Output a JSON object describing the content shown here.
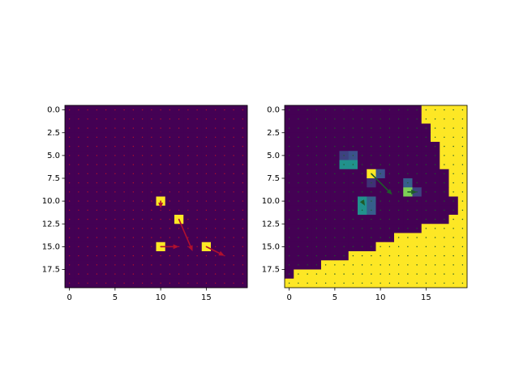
{
  "chart_data": [
    {
      "type": "heatmap",
      "colorscale": [
        "#440154",
        "#3b528b",
        "#21918c",
        "#5ec962",
        "#fde725"
      ],
      "zlim": [
        0,
        1
      ],
      "xlim": [
        -0.5,
        19.5
      ],
      "ylim": [
        19.5,
        -0.5
      ],
      "xticks": [
        0,
        5,
        10,
        15
      ],
      "yticks": [
        {
          "value": 0,
          "label": "0.0"
        },
        {
          "value": 2.5,
          "label": "2.5"
        },
        {
          "value": 5,
          "label": "5.0"
        },
        {
          "value": 7.5,
          "label": "7.5"
        },
        {
          "value": 10,
          "label": "10.0"
        },
        {
          "value": 12.5,
          "label": "12.5"
        },
        {
          "value": 15,
          "label": "15.0"
        },
        {
          "value": 17.5,
          "label": "17.5"
        }
      ],
      "arrow_color": "#b0102e",
      "arrows": [
        {
          "x": 10,
          "y": 10,
          "u": 0,
          "v": 0.8
        },
        {
          "x": 12,
          "y": 12,
          "u": 1.5,
          "v": 3.5
        },
        {
          "x": 10,
          "y": 15,
          "u": 2,
          "v": 0
        },
        {
          "x": 15,
          "y": 15,
          "u": 2,
          "v": 1
        }
      ],
      "z": [
        [
          0,
          0,
          0,
          0,
          0,
          0,
          0,
          0,
          0,
          0,
          0,
          0,
          0,
          0,
          0,
          0,
          0,
          0,
          0,
          0
        ],
        [
          0,
          0,
          0,
          0,
          0,
          0,
          0,
          0,
          0,
          0,
          0,
          0,
          0,
          0,
          0,
          0,
          0,
          0,
          0,
          0
        ],
        [
          0,
          0,
          0,
          0,
          0,
          0,
          0,
          0,
          0,
          0,
          0,
          0,
          0,
          0,
          0,
          0,
          0,
          0,
          0,
          0
        ],
        [
          0,
          0,
          0,
          0,
          0,
          0,
          0,
          0,
          0,
          0,
          0,
          0,
          0,
          0,
          0,
          0,
          0,
          0,
          0,
          0
        ],
        [
          0,
          0,
          0,
          0,
          0,
          0,
          0,
          0,
          0,
          0,
          0,
          0,
          0,
          0,
          0,
          0,
          0,
          0,
          0,
          0
        ],
        [
          0,
          0,
          0,
          0,
          0,
          0,
          0,
          0,
          0,
          0,
          0,
          0,
          0,
          0,
          0,
          0,
          0,
          0,
          0,
          0
        ],
        [
          0,
          0,
          0,
          0,
          0,
          0,
          0,
          0,
          0,
          0,
          0,
          0,
          0,
          0,
          0,
          0,
          0,
          0,
          0,
          0
        ],
        [
          0,
          0,
          0,
          0,
          0,
          0,
          0,
          0,
          0,
          0,
          0,
          0,
          0,
          0,
          0,
          0,
          0,
          0,
          0,
          0
        ],
        [
          0,
          0,
          0,
          0,
          0,
          0,
          0,
          0,
          0,
          0,
          0,
          0,
          0,
          0,
          0,
          0,
          0,
          0,
          0,
          0
        ],
        [
          0,
          0,
          0,
          0,
          0,
          0,
          0,
          0,
          0,
          0,
          0,
          0,
          0,
          0,
          0,
          0,
          0,
          0,
          0,
          0
        ],
        [
          0,
          0,
          0,
          0,
          0,
          0,
          0,
          0,
          0,
          0,
          1,
          0,
          0,
          0,
          0,
          0,
          0,
          0,
          0,
          0
        ],
        [
          0,
          0,
          0,
          0,
          0,
          0,
          0,
          0,
          0,
          0,
          0,
          0,
          0,
          0,
          0,
          0,
          0,
          0,
          0,
          0
        ],
        [
          0,
          0,
          0,
          0,
          0,
          0,
          0,
          0,
          0,
          0,
          0,
          0,
          1,
          0,
          0,
          0,
          0,
          0,
          0,
          0
        ],
        [
          0,
          0,
          0,
          0,
          0,
          0,
          0,
          0,
          0,
          0,
          0,
          0,
          0,
          0,
          0,
          0,
          0,
          0,
          0,
          0
        ],
        [
          0,
          0,
          0,
          0,
          0,
          0,
          0,
          0,
          0,
          0,
          0,
          0,
          0,
          0,
          0,
          0,
          0,
          0,
          0,
          0
        ],
        [
          0,
          0,
          0,
          0,
          0,
          0,
          0,
          0,
          0,
          0,
          1,
          0,
          0,
          0,
          0,
          1,
          0,
          0,
          0,
          0
        ],
        [
          0,
          0,
          0,
          0,
          0,
          0,
          0,
          0,
          0,
          0,
          0,
          0,
          0,
          0,
          0,
          0,
          0,
          0,
          0,
          0
        ],
        [
          0,
          0,
          0,
          0,
          0,
          0,
          0,
          0,
          0,
          0,
          0,
          0,
          0,
          0,
          0,
          0,
          0,
          0,
          0,
          0
        ],
        [
          0,
          0,
          0,
          0,
          0,
          0,
          0,
          0,
          0,
          0,
          0,
          0,
          0,
          0,
          0,
          0,
          0,
          0,
          0,
          0
        ],
        [
          0,
          0,
          0,
          0,
          0,
          0,
          0,
          0,
          0,
          0,
          0,
          0,
          0,
          0,
          0,
          0,
          0,
          0,
          0,
          0
        ]
      ]
    },
    {
      "type": "heatmap",
      "colorscale": [
        "#440154",
        "#3b528b",
        "#21918c",
        "#5ec962",
        "#fde725"
      ],
      "zlim": [
        0,
        1
      ],
      "xlim": [
        -0.5,
        19.5
      ],
      "ylim": [
        19.5,
        -0.5
      ],
      "xticks": [
        0,
        5,
        10,
        15
      ],
      "yticks": [
        {
          "value": 0,
          "label": "0.0"
        },
        {
          "value": 2.5,
          "label": "2.5"
        },
        {
          "value": 5,
          "label": "5.0"
        },
        {
          "value": 7.5,
          "label": "7.5"
        },
        {
          "value": 10,
          "label": "10.0"
        },
        {
          "value": 12.5,
          "label": "12.5"
        },
        {
          "value": 15,
          "label": "15.0"
        },
        {
          "value": 17.5,
          "label": "17.5"
        }
      ],
      "arrow_color": "#1f5a2a",
      "arrows": [
        {
          "x": 9,
          "y": 7,
          "u": 2.3,
          "v": 2.3
        },
        {
          "x": 13,
          "y": 9,
          "u": 1,
          "v": 0
        },
        {
          "x": 8,
          "y": 10,
          "u": 0.3,
          "v": 0.5
        }
      ],
      "z": [
        [
          0,
          0,
          0,
          0,
          0,
          0,
          0,
          0,
          0,
          0,
          0,
          0,
          0,
          0,
          0,
          1,
          1,
          1,
          1,
          1
        ],
        [
          0,
          0,
          0,
          0,
          0,
          0,
          0,
          0,
          0,
          0,
          0,
          0,
          0,
          0,
          0,
          1,
          1,
          1,
          1,
          1
        ],
        [
          0,
          0,
          0,
          0,
          0,
          0,
          0,
          0,
          0,
          0,
          0,
          0,
          0,
          0,
          0,
          0,
          1,
          1,
          1,
          1
        ],
        [
          0,
          0,
          0,
          0,
          0,
          0,
          0,
          0,
          0,
          0,
          0,
          0,
          0,
          0,
          0,
          0,
          1,
          1,
          1,
          1
        ],
        [
          0,
          0,
          0,
          0,
          0,
          0,
          0,
          0,
          0,
          0,
          0,
          0,
          0,
          0,
          0,
          0,
          0,
          1,
          1,
          1
        ],
        [
          0,
          0,
          0,
          0,
          0,
          0,
          0.2,
          0.25,
          0,
          0,
          0,
          0,
          0,
          0,
          0,
          0,
          0,
          1,
          1,
          1
        ],
        [
          0,
          0,
          0,
          0,
          0,
          0,
          0.5,
          0.5,
          0,
          0,
          0,
          0,
          0,
          0,
          0,
          0,
          0,
          1,
          1,
          1
        ],
        [
          0,
          0,
          0,
          0,
          0,
          0,
          0,
          0,
          0,
          1,
          0.25,
          0,
          0,
          0,
          0,
          0,
          0,
          0,
          1,
          1
        ],
        [
          0,
          0,
          0,
          0,
          0,
          0,
          0,
          0,
          0,
          0.15,
          0,
          0,
          0,
          0.3,
          0,
          0,
          0,
          0,
          1,
          1
        ],
        [
          0,
          0,
          0,
          0,
          0,
          0,
          0,
          0,
          0,
          0,
          0,
          0,
          0,
          0.8,
          0.2,
          0,
          0,
          0,
          1,
          1
        ],
        [
          0,
          0,
          0,
          0,
          0,
          0,
          0,
          0,
          0.5,
          0.3,
          0,
          0,
          0,
          0,
          0,
          0,
          0,
          0,
          0,
          1
        ],
        [
          0,
          0,
          0,
          0,
          0,
          0,
          0,
          0,
          0.5,
          0.3,
          0,
          0,
          0,
          0,
          0,
          0,
          0,
          0,
          0,
          1
        ],
        [
          0,
          0,
          0,
          0,
          0,
          0,
          0,
          0,
          0,
          0,
          0,
          0,
          0,
          0,
          0,
          0,
          0,
          0,
          1,
          1
        ],
        [
          0,
          0,
          0,
          0,
          0,
          0,
          0,
          0,
          0,
          0,
          0,
          0,
          0,
          0,
          0,
          1,
          1,
          1,
          1,
          1
        ],
        [
          0,
          0,
          0,
          0,
          0,
          0,
          0,
          0,
          0,
          0,
          0,
          0,
          1,
          1,
          1,
          1,
          1,
          1,
          1,
          1
        ],
        [
          0,
          0,
          0,
          0,
          0,
          0,
          0,
          0,
          0,
          0,
          1,
          1,
          1,
          1,
          1,
          1,
          1,
          1,
          1,
          1
        ],
        [
          0,
          0,
          0,
          0,
          0,
          0,
          0,
          1,
          1,
          1,
          1,
          1,
          1,
          1,
          1,
          1,
          1,
          1,
          1,
          1
        ],
        [
          0,
          0,
          0,
          0,
          1,
          1,
          1,
          1,
          1,
          1,
          1,
          1,
          1,
          1,
          1,
          1,
          1,
          1,
          1,
          1
        ],
        [
          0,
          1,
          1,
          1,
          1,
          1,
          1,
          1,
          1,
          1,
          1,
          1,
          1,
          1,
          1,
          1,
          1,
          1,
          1,
          1
        ],
        [
          1,
          1,
          1,
          1,
          1,
          1,
          1,
          1,
          1,
          1,
          1,
          1,
          1,
          1,
          1,
          1,
          1,
          1,
          1,
          1
        ]
      ]
    }
  ]
}
